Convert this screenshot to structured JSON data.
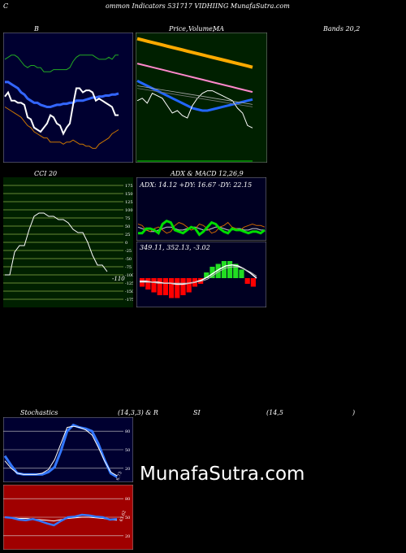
{
  "header": {
    "c_letter": "C",
    "title": "ommon  Indicators 531717 VIDHIING MunafaSutra.com"
  },
  "labels": {
    "bb": "B",
    "price_left": "Price,",
    "price_mid": "Volume,",
    "price_ma": "MA",
    "bands": "Bands 20,2",
    "cci": "CCI 20",
    "adx_macd": "ADX  & MACD 12,26,9",
    "stoch_a": "Stochastics",
    "stoch_b": "(14,3,3) & R",
    "stoch_c": "SI",
    "stoch_d": "(14,5",
    "stoch_e": ")"
  },
  "adx": {
    "text": "ADX: 14.12  +DY: 16.67 -DY: 22.15"
  },
  "macd": {
    "text": "349.11,  352.13,  -3.02"
  },
  "watermark": "MunafaSutra.com",
  "colors": {
    "bb_bg": "#000030",
    "ma_bg": "#002000",
    "cci_bg": "#002000",
    "adx_bg": "#000022",
    "stoch_bg": "#000030",
    "rsi_bg": "#a00000"
  },
  "chart_data": [
    {
      "type": "line",
      "panel": "bollinger",
      "series": [
        {
          "color": "#ffffff",
          "values": [
            56,
            60,
            52,
            52,
            50,
            50,
            48,
            36,
            34,
            26,
            24,
            22,
            26,
            30,
            38,
            36,
            30,
            28,
            20,
            26,
            30,
            48,
            64,
            64,
            60,
            62,
            62,
            60,
            52,
            54,
            52,
            50,
            48,
            46,
            38,
            38
          ]
        },
        {
          "color": "#3366ff",
          "values": [
            70,
            70,
            68,
            66,
            64,
            60,
            58,
            54,
            52,
            50,
            50,
            48,
            47,
            46,
            46,
            47,
            48,
            48,
            49,
            49,
            50,
            50,
            52,
            52,
            52,
            53,
            54,
            55,
            55,
            56,
            56,
            57,
            57,
            58,
            58,
            59
          ]
        },
        {
          "color": "#22aa22",
          "values": [
            92,
            94,
            96,
            96,
            94,
            90,
            86,
            84,
            86,
            86,
            84,
            84,
            80,
            80,
            80,
            82,
            82,
            82,
            82,
            82,
            84,
            90,
            94,
            96,
            96,
            96,
            96,
            96,
            94,
            92,
            92,
            92,
            94,
            92,
            96,
            96
          ]
        },
        {
          "color": "#cc7700",
          "values": [
            46,
            44,
            42,
            40,
            38,
            36,
            32,
            28,
            26,
            22,
            20,
            18,
            16,
            16,
            12,
            12,
            12,
            12,
            10,
            12,
            12,
            14,
            12,
            10,
            10,
            8,
            8,
            6,
            6,
            10,
            12,
            14,
            16,
            20,
            22,
            24
          ]
        }
      ]
    },
    {
      "type": "line",
      "panel": "price-ma",
      "series": [
        {
          "color": "#ffaa00",
          "values": [
            100,
            99,
            98,
            97,
            96,
            95,
            94,
            93,
            92,
            91,
            90,
            89,
            88,
            87,
            86,
            85,
            84,
            83,
            82,
            81,
            80,
            79,
            78,
            77
          ]
        },
        {
          "color": "#ff88cc",
          "values": [
            80,
            79,
            78,
            77,
            76,
            75,
            74,
            73,
            72,
            71,
            70,
            69,
            68,
            67,
            66,
            65,
            64,
            63,
            62,
            61,
            60,
            59,
            58,
            57
          ]
        },
        {
          "color": "#2266ff",
          "values": [
            66,
            64,
            62,
            60,
            58,
            56,
            54,
            52,
            50,
            48,
            46,
            44,
            43,
            42,
            42,
            43,
            44,
            45,
            46,
            47,
            48,
            49,
            50,
            51
          ]
        },
        {
          "color": "#ffffff",
          "values": [
            50,
            52,
            48,
            56,
            54,
            52,
            46,
            40,
            42,
            38,
            36,
            46,
            52,
            56,
            58,
            58,
            56,
            54,
            52,
            50,
            44,
            40,
            30,
            28
          ]
        }
      ]
    },
    {
      "type": "line",
      "panel": "cci",
      "ylim": [
        -200,
        200
      ],
      "ticks": [
        175,
        150,
        125,
        100,
        75,
        50,
        25,
        0,
        -25,
        -50,
        -75,
        -100,
        -125,
        -150,
        -175
      ],
      "value_label": "-110",
      "values": [
        -100,
        -100,
        -30,
        -10,
        -10,
        40,
        80,
        90,
        90,
        80,
        80,
        70,
        70,
        60,
        40,
        30,
        30,
        0,
        -40,
        -70,
        -70,
        -90
      ]
    },
    {
      "type": "line",
      "panel": "adx",
      "series": [
        {
          "color": "#00dd00",
          "values": [
            10,
            10,
            16,
            16,
            14,
            10,
            22,
            26,
            24,
            14,
            12,
            10,
            14,
            18,
            16,
            8,
            12,
            18,
            24,
            22,
            16,
            12,
            10,
            16,
            14,
            14,
            12,
            10,
            12,
            12,
            10,
            14
          ]
        },
        {
          "color": "#cc6600",
          "values": [
            22,
            20,
            14,
            12,
            16,
            18,
            14,
            10,
            12,
            20,
            24,
            22,
            18,
            14,
            16,
            22,
            20,
            16,
            10,
            12,
            18,
            20,
            24,
            18,
            16,
            14,
            18,
            20,
            22,
            20,
            20,
            18
          ]
        },
        {
          "color": "#cccccc",
          "values": [
            18,
            16,
            14,
            12,
            12,
            14,
            16,
            18,
            18,
            16,
            14,
            14,
            16,
            18,
            18,
            16,
            14,
            14,
            16,
            18,
            18,
            16,
            14,
            14,
            16,
            16,
            14,
            14,
            16,
            16,
            14,
            14
          ]
        }
      ]
    },
    {
      "type": "bar",
      "panel": "macd",
      "values": [
        -3,
        -4,
        -5,
        -6,
        -6,
        -7,
        -7,
        -6,
        -5,
        -3,
        -2,
        2,
        4,
        5,
        6,
        6,
        5,
        3,
        -2,
        -3
      ]
    },
    {
      "type": "line",
      "panel": "stochastics",
      "ylim": [
        0,
        100
      ],
      "ticks": [
        80,
        50,
        20
      ],
      "value_label": "6.73",
      "series": [
        {
          "color": "#3377ff",
          "values": [
            40,
            25,
            12,
            10,
            10,
            10,
            10,
            14,
            22,
            48,
            80,
            90,
            86,
            84,
            80,
            60,
            34,
            12,
            6
          ]
        },
        {
          "color": "#ffffff",
          "values": [
            32,
            20,
            12,
            10,
            10,
            10,
            12,
            18,
            34,
            60,
            86,
            88,
            86,
            82,
            74,
            54,
            32,
            14,
            8
          ]
        }
      ]
    },
    {
      "type": "line",
      "panel": "rsi",
      "ylim": [
        0,
        100
      ],
      "ticks": [
        80,
        50,
        20
      ],
      "value_label": "43.62",
      "series": [
        {
          "color": "#3377ff",
          "values": [
            50,
            49,
            46,
            45,
            47,
            44,
            40,
            37,
            44,
            50,
            51,
            54,
            53,
            51,
            50,
            46,
            47
          ]
        },
        {
          "color": "#ffffff",
          "values": [
            50,
            49,
            48,
            48,
            47,
            46,
            45,
            44,
            46,
            48,
            49,
            50,
            50,
            49,
            48,
            46,
            45
          ]
        }
      ]
    }
  ]
}
